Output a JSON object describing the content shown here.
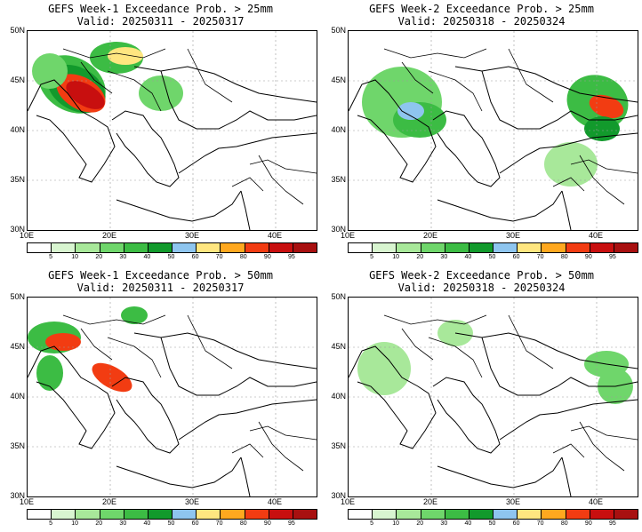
{
  "panels": [
    {
      "title_line1": "GEFS Week-1 Exceedance Prob. > 25mm",
      "title_line2": "Valid: 20250311 - 20250317"
    },
    {
      "title_line1": "GEFS Week-2 Exceedance Prob. > 25mm",
      "title_line2": "Valid: 20250318 - 20250324"
    },
    {
      "title_line1": "GEFS Week-1 Exceedance Prob. > 50mm",
      "title_line2": "Valid: 20250311 - 20250317"
    },
    {
      "title_line1": "GEFS Week-2 Exceedance Prob. > 50mm",
      "title_line2": "Valid: 20250318 - 20250324"
    }
  ],
  "axes": {
    "y_labels": [
      "50N",
      "45N",
      "40N",
      "35N",
      "30N"
    ],
    "x_labels": [
      "10E",
      "20E",
      "30E",
      "40E"
    ]
  },
  "colorbar": {
    "labels": [
      "5",
      "10",
      "20",
      "30",
      "40",
      "50",
      "60",
      "70",
      "80",
      "90",
      "95"
    ],
    "colors": [
      "#ffffff",
      "#d8f5d0",
      "#a8e89a",
      "#6fd66b",
      "#3cbc44",
      "#129a2c",
      "#8ec5ef",
      "#ffe680",
      "#ffa81f",
      "#f23c12",
      "#c80f0f",
      "#a81010"
    ]
  }
}
